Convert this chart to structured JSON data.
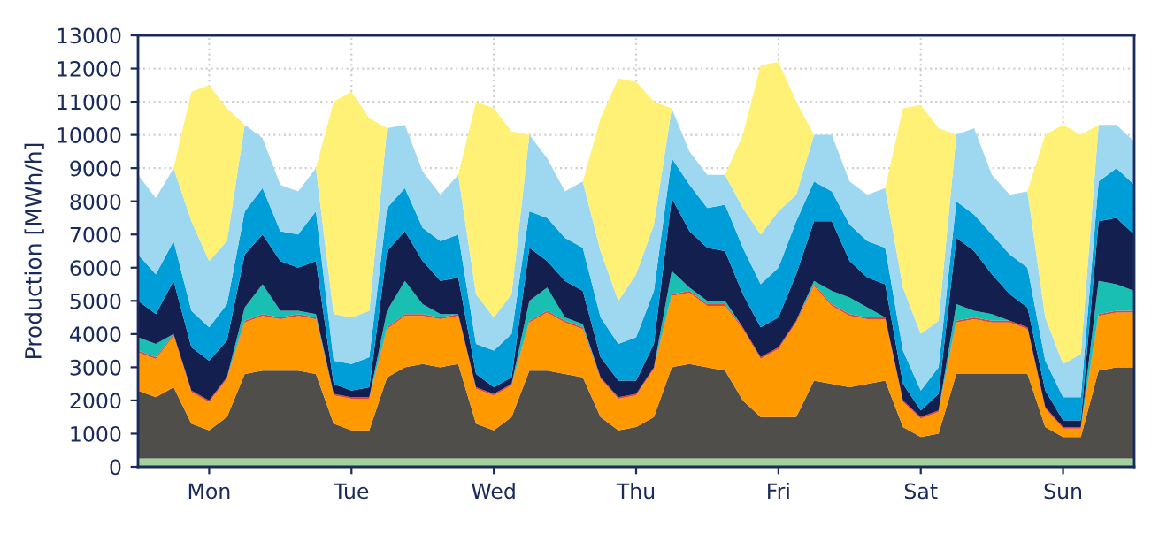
{
  "chart_data": {
    "type": "area",
    "stacked": true,
    "ylabel": "Production [MWh/h]",
    "categories": [
      null,
      null,
      null,
      null,
      "Mon",
      null,
      null,
      null,
      null,
      null,
      null,
      null,
      "Tue",
      null,
      null,
      null,
      null,
      null,
      null,
      null,
      "Wed",
      null,
      null,
      null,
      null,
      null,
      null,
      null,
      "Thu",
      null,
      null,
      null,
      null,
      null,
      null,
      null,
      "Fri",
      null,
      null,
      null,
      null,
      null,
      null,
      null,
      "Sat",
      null,
      null,
      null,
      null,
      null,
      null,
      null,
      "Sun",
      null,
      null,
      null,
      null
    ],
    "ylim": [
      0,
      13000
    ],
    "yticks": [
      0,
      1000,
      2000,
      3000,
      4000,
      5000,
      6000,
      7000,
      8000,
      9000,
      10000,
      11000,
      12000,
      13000
    ],
    "grid": true,
    "series": [
      {
        "color": "#a3d39c",
        "values": [
          250,
          250,
          250,
          250,
          250,
          250,
          250,
          250,
          250,
          250,
          250,
          250,
          250,
          250,
          250,
          250,
          250,
          250,
          250,
          250,
          250,
          250,
          250,
          250,
          250,
          250,
          250,
          250,
          250,
          250,
          250,
          250,
          250,
          250,
          250,
          250,
          250,
          250,
          250,
          250,
          250,
          250,
          250,
          250,
          250,
          250,
          250,
          250,
          250,
          250,
          250,
          250,
          250,
          250,
          250,
          250,
          250
        ]
      },
      {
        "color": "#4f4e4b",
        "values": [
          2050,
          1850,
          2150,
          1050,
          850,
          1250,
          2550,
          2650,
          2650,
          2650,
          2550,
          1050,
          850,
          850,
          2450,
          2750,
          2850,
          2750,
          2850,
          1050,
          850,
          1250,
          2650,
          2650,
          2550,
          2450,
          1250,
          850,
          950,
          1250,
          2750,
          2850,
          2750,
          2650,
          1750,
          1250,
          1250,
          1250,
          2350,
          2250,
          2150,
          2250,
          2350,
          950,
          650,
          750,
          2550,
          2550,
          2550,
          2550,
          2550,
          950,
          650,
          650,
          2650,
          2750,
          2750
        ]
      },
      {
        "color": "#ff9900",
        "values": [
          1150,
          1150,
          1550,
          950,
          850,
          1150,
          1550,
          1650,
          1550,
          1650,
          1650,
          850,
          950,
          950,
          1450,
          1550,
          1450,
          1450,
          1450,
          1050,
          1050,
          950,
          1450,
          1750,
          1550,
          1450,
          1150,
          950,
          950,
          1450,
          2150,
          2150,
          1850,
          1950,
          2150,
          1750,
          2050,
          2850,
          2850,
          2350,
          2150,
          1950,
          1850,
          750,
          550,
          650,
          1550,
          1650,
          1550,
          1550,
          1350,
          550,
          250,
          250,
          1650,
          1650,
          1650
        ]
      },
      {
        "color": "#e8413c",
        "values": [
          50,
          50,
          50,
          50,
          50,
          50,
          50,
          50,
          50,
          50,
          50,
          50,
          50,
          50,
          50,
          50,
          50,
          50,
          50,
          50,
          50,
          50,
          50,
          50,
          50,
          50,
          50,
          50,
          50,
          50,
          50,
          50,
          50,
          50,
          50,
          50,
          50,
          50,
          50,
          50,
          50,
          50,
          50,
          50,
          50,
          50,
          50,
          50,
          50,
          50,
          50,
          50,
          50,
          50,
          50,
          50,
          50
        ]
      },
      {
        "color": "#1abfb4",
        "values": [
          400,
          400,
          0,
          0,
          0,
          0,
          400,
          900,
          200,
          100,
          100,
          0,
          0,
          0,
          500,
          1000,
          300,
          100,
          0,
          0,
          0,
          0,
          600,
          700,
          100,
          100,
          0,
          0,
          0,
          0,
          700,
          100,
          100,
          100,
          0,
          0,
          0,
          0,
          100,
          400,
          500,
          300,
          0,
          0,
          0,
          0,
          500,
          200,
          200,
          0,
          0,
          0,
          0,
          0,
          1000,
          800,
          600
        ]
      },
      {
        "color": "#13204f",
        "values": [
          1100,
          900,
          1600,
          1300,
          1200,
          1100,
          1600,
          1500,
          1500,
          1300,
          1600,
          300,
          200,
          300,
          1800,
          1500,
          1300,
          1000,
          1100,
          400,
          200,
          200,
          1600,
          800,
          1100,
          1000,
          600,
          500,
          400,
          700,
          2200,
          1700,
          1600,
          1500,
          1000,
          900,
          900,
          1400,
          1800,
          2100,
          1100,
          900,
          1000,
          500,
          200,
          500,
          2000,
          1800,
          1200,
          800,
          600,
          500,
          200,
          200,
          1800,
          2000,
          1700
        ]
      },
      {
        "color": "#009ed8",
        "values": [
          1400,
          1200,
          1200,
          1100,
          1000,
          1100,
          1300,
          1400,
          900,
          1000,
          1500,
          700,
          800,
          900,
          1300,
          1300,
          1000,
          1200,
          1300,
          900,
          1100,
          1300,
          1100,
          1300,
          1300,
          1300,
          1200,
          1100,
          1300,
          1600,
          1200,
          1400,
          1200,
          1400,
          1400,
          1300,
          1500,
          1600,
          1200,
          900,
          1100,
          1100,
          1100,
          1000,
          600,
          800,
          1100,
          1100,
          1200,
          1200,
          1200,
          900,
          700,
          700,
          1200,
          1500,
          1500
        ]
      },
      {
        "color": "#9dd8f0",
        "values": [
          2400,
          2300,
          2200,
          2700,
          2000,
          1900,
          2600,
          1500,
          1400,
          1300,
          1300,
          1400,
          1400,
          1400,
          2400,
          1900,
          1700,
          1400,
          1800,
          1500,
          1000,
          1200,
          2300,
          1800,
          1400,
          2000,
          2000,
          1300,
          1900,
          2000,
          1500,
          1000,
          1000,
          900,
          1200,
          1500,
          1700,
          800,
          1400,
          1700,
          1300,
          1400,
          1800,
          1900,
          1700,
          1400,
          2000,
          2600,
          1800,
          1800,
          2300,
          1300,
          1000,
          1300,
          1700,
          1300,
          1300
        ]
      },
      {
        "color": "#fff176",
        "values": [
          0,
          0,
          0,
          3900,
          5300,
          4000,
          0,
          0,
          0,
          0,
          0,
          6400,
          6800,
          5800,
          0,
          0,
          0,
          0,
          0,
          5800,
          6300,
          4900,
          0,
          0,
          0,
          0,
          4000,
          6700,
          5800,
          3700,
          0,
          0,
          0,
          0,
          2200,
          5100,
          4500,
          2800,
          0,
          0,
          0,
          0,
          0,
          5400,
          6900,
          5800,
          0,
          0,
          0,
          0,
          0,
          5500,
          7200,
          6600,
          0,
          0,
          0
        ]
      }
    ]
  }
}
